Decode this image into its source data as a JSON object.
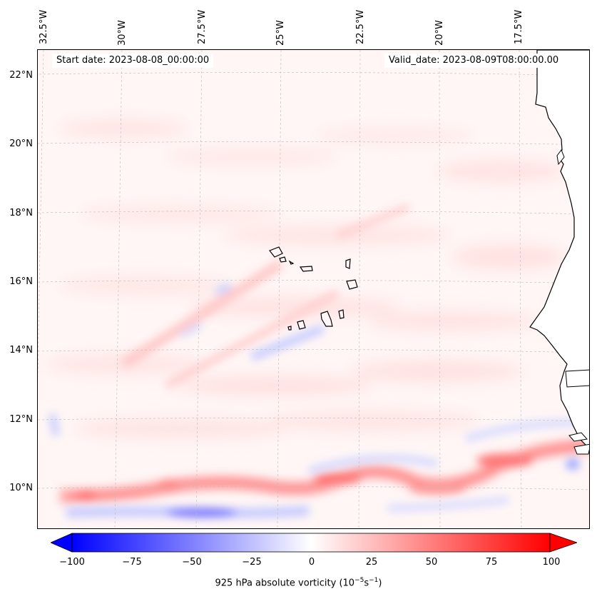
{
  "map": {
    "start_date": "Start date: 2023-08-08_00:00:00",
    "valid_date": "Valid_date: 2023-08-09T08:00:00.00",
    "lon_labels": [
      "32.5°W",
      "30°W",
      "27.5°W",
      "25°W",
      "22.5°W",
      "20°W",
      "17.5°W"
    ],
    "lat_labels": [
      "22°N",
      "20°N",
      "18°N",
      "16°N",
      "14°N",
      "12°N",
      "10°N"
    ],
    "colorbar": {
      "ticks": [
        "−100",
        "−75",
        "−50",
        "−25",
        "0",
        "25",
        "50",
        "75",
        "100"
      ],
      "label_prefix": "925 hPa absolute vorticity (10",
      "label_exp1": "−5",
      "label_mid": "s",
      "label_exp2": "−1",
      "label_suffix": ")",
      "min": -100,
      "max": 100,
      "low_color": "#0000ff",
      "mid_color": "#ffffff",
      "high_color": "#ff0000"
    },
    "land_color": "#ffffff",
    "coast_color": "#000000"
  }
}
